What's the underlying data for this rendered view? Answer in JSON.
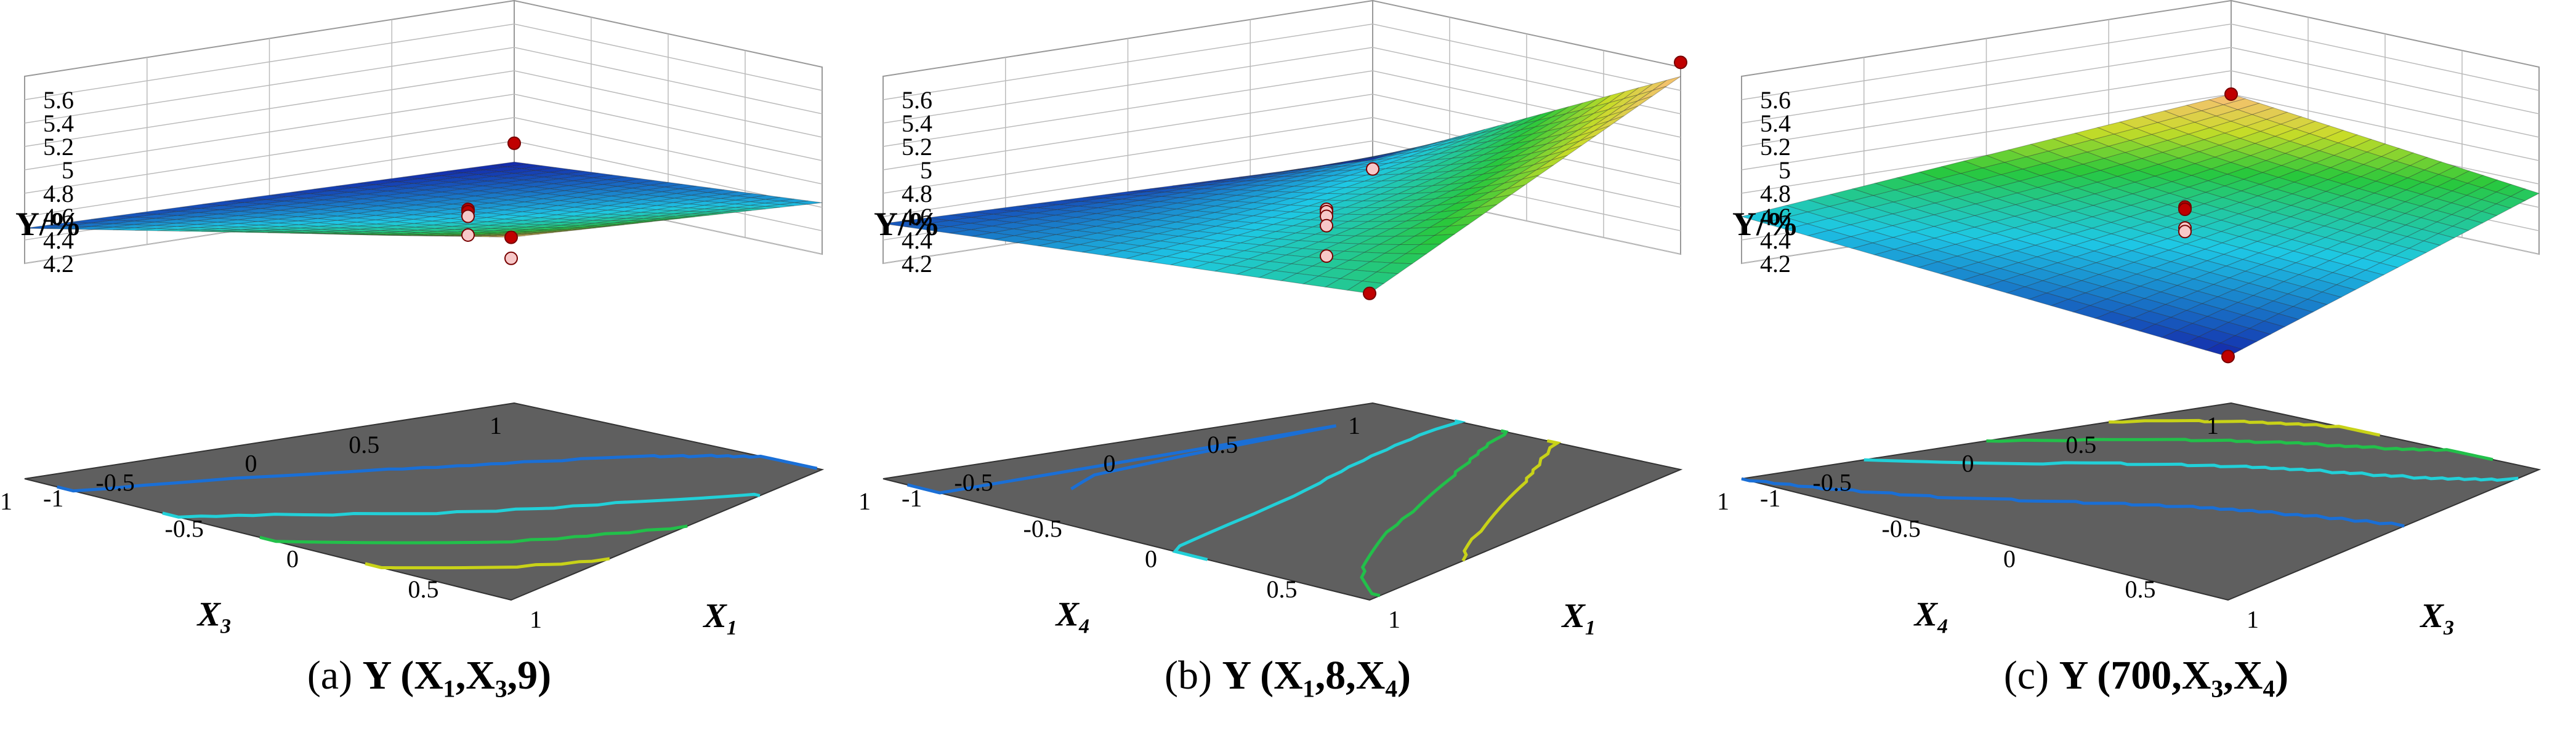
{
  "chart_data": [
    {
      "type": "surface3d",
      "caption_tag": "(a)",
      "caption": "Y (X₁,X₃,9)",
      "zlabel": "Y/%",
      "zticks": [
        "4.2",
        "4.4",
        "4.6",
        "4.8",
        "5",
        "5.2",
        "5.4",
        "5.6"
      ],
      "zlim": [
        4.2,
        5.6
      ],
      "x_axis": {
        "name": "X",
        "sub": "1",
        "ticks": [
          "-1",
          "-0.5",
          "0",
          "0.5",
          "1"
        ]
      },
      "y_axis": {
        "name": "X",
        "sub": "3",
        "ticks": [
          "-1",
          "-0.5",
          "0",
          "0.5",
          "1"
        ]
      },
      "surface_corners": {
        "left": 4.42,
        "front": 4.5,
        "right": 5.46,
        "back": 4.64
      },
      "contour_levels": [
        4.6,
        4.8,
        5.0,
        5.2
      ],
      "contour_colors": [
        "#1a6fd6",
        "#22d0d8",
        "#22c04a",
        "#c8d218"
      ],
      "design_points": [
        {
          "corner": "right",
          "y": 5.46
        },
        {
          "corner": "right",
          "y": 5.28
        },
        {
          "corner": "left",
          "y": 4.58
        },
        {
          "corner": "center",
          "y": 4.74
        },
        {
          "corner": "center",
          "y": 4.72
        },
        {
          "corner": "center",
          "y": 4.68
        },
        {
          "corner": "center",
          "y": 4.52
        }
      ]
    },
    {
      "type": "surface3d",
      "caption_tag": "(b)",
      "caption": "Y (X₁,8,X₄)",
      "zlabel": "Y/%",
      "zticks": [
        "4.2",
        "4.4",
        "4.6",
        "4.8",
        "5",
        "5.2",
        "5.4",
        "5.6"
      ],
      "zlim": [
        4.2,
        5.6
      ],
      "x_axis": {
        "name": "X",
        "sub": "1",
        "ticks": [
          "-1",
          "-0.5",
          "0",
          "0.5",
          "1"
        ]
      },
      "y_axis": {
        "name": "X",
        "sub": "4",
        "ticks": [
          "-1",
          "-0.5",
          "0",
          "0.5",
          "1"
        ]
      },
      "surface_corners": {
        "left": 4.44,
        "front": 4.54,
        "right": 4.98,
        "back": 5.72
      },
      "contour_levels": [
        4.6,
        4.8,
        5.0,
        5.2
      ],
      "contour_colors": [
        "#1a6fd6",
        "#22d0d8",
        "#22c04a",
        "#c8d218"
      ],
      "design_points": [
        {
          "corner": "back",
          "y": 5.84
        },
        {
          "corner": "right",
          "y": 4.98
        },
        {
          "corner": "left",
          "y": 4.36
        },
        {
          "corner": "center",
          "y": 4.74
        },
        {
          "corner": "center",
          "y": 4.72
        },
        {
          "corner": "center",
          "y": 4.68
        },
        {
          "corner": "center",
          "y": 4.6
        },
        {
          "corner": "center",
          "y": 4.34
        }
      ]
    },
    {
      "type": "surface3d",
      "caption_tag": "(c)",
      "caption": "Y (700,X₃,X₄)",
      "zlabel": "Y/%",
      "zticks": [
        "4.2",
        "4.4",
        "4.6",
        "4.8",
        "5",
        "5.2",
        "5.4",
        "5.6"
      ],
      "zlim": [
        4.2,
        5.6
      ],
      "x_axis": {
        "name": "X",
        "sub": "3",
        "ticks": [
          "-1",
          "-0.5",
          "0",
          "0.5",
          "1"
        ]
      },
      "y_axis": {
        "name": "X",
        "sub": "4",
        "ticks": [
          "-1",
          "-0.5",
          "0",
          "0.5",
          "1"
        ]
      },
      "surface_corners": {
        "left": 5.0,
        "front": 4.6,
        "right": 4.44,
        "back": 4.72
      },
      "contour_levels": [
        4.6,
        4.7,
        4.8,
        4.9
      ],
      "contour_colors": [
        "#1a6fd6",
        "#22d0d8",
        "#22c04a",
        "#c8d218"
      ],
      "design_points": [
        {
          "corner": "left",
          "y": 5.0
        },
        {
          "corner": "right",
          "y": 4.44
        },
        {
          "corner": "center",
          "y": 4.76
        },
        {
          "corner": "center",
          "y": 4.74
        },
        {
          "corner": "center",
          "y": 4.58
        },
        {
          "corner": "center",
          "y": 4.55
        }
      ]
    }
  ]
}
